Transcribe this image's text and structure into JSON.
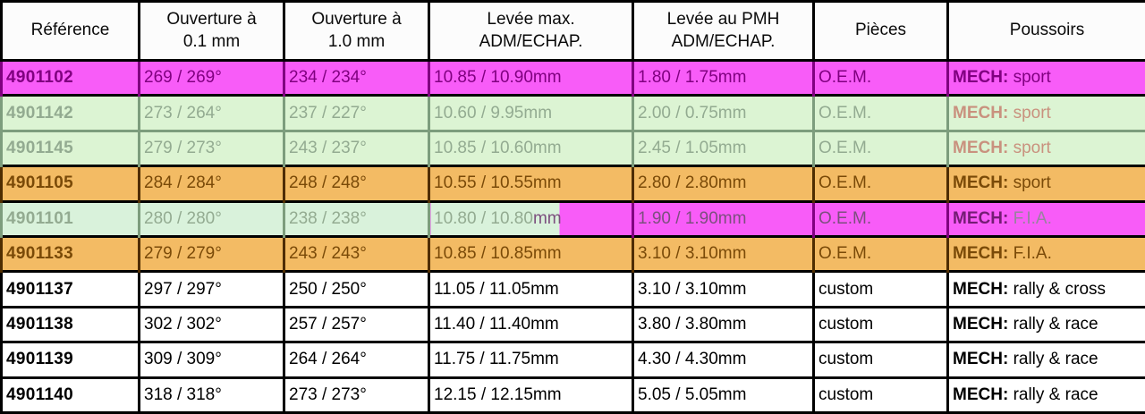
{
  "colors": {
    "magenta_bg": "#f85cf8",
    "purple_text": "#800080",
    "green_bg": "#dcf4d3",
    "green_bg_selected": "#d9f2db",
    "faded_text": "#93ab91",
    "faded_border": "#7d9d7d",
    "salmon_text": "#c9917e",
    "orange_bg": "#f3bb64",
    "brown_text": "#7a4a08",
    "brown_border": "#4f2d00",
    "selected_text": "#7c4f7e",
    "selected_text_light": "#97839d",
    "selected_mech": "#741c74",
    "header_bg": "#fcfcfc",
    "white_row_text": "#000000",
    "border_black": "#000000"
  },
  "table": {
    "columns": [
      {
        "id": "reference",
        "label_lines": [
          "Référence"
        ]
      },
      {
        "id": "ouverture_01",
        "label_lines": [
          "Ouverture à",
          "0.1 mm"
        ]
      },
      {
        "id": "ouverture_10",
        "label_lines": [
          "Ouverture à",
          "1.0 mm"
        ]
      },
      {
        "id": "levee_max",
        "label_lines": [
          "Levée max.",
          "ADM/ECHAP."
        ]
      },
      {
        "id": "levee_pmh",
        "label_lines": [
          "Levée au PMH",
          "ADM/ECHAP."
        ]
      },
      {
        "id": "pieces",
        "label_lines": [
          "Pièces"
        ]
      },
      {
        "id": "poussoirs",
        "label_lines": [
          "Poussoirs"
        ]
      }
    ],
    "rows": [
      {
        "style": "magenta",
        "reference": "4901102",
        "ouverture_01": "269 / 269°",
        "ouverture_10": "234 / 234°",
        "levee_max": "10.85 / 10.90mm",
        "levee_pmh": "1.80 / 1.75mm",
        "pieces": "O.E.M.",
        "poussoirs": {
          "label": "MECH:",
          "value": "sport"
        }
      },
      {
        "style": "faded",
        "reference": "4901142",
        "ouverture_01": "273 / 264°",
        "ouverture_10": "237 / 227°",
        "levee_max": "10.60 / 9.95mm",
        "levee_pmh": "2.00 / 0.75mm",
        "pieces": "O.E.M.",
        "poussoirs": {
          "label": "MECH:",
          "value": "sport"
        }
      },
      {
        "style": "faded",
        "reference": "4901145",
        "ouverture_01": "279 / 273°",
        "ouverture_10": "243 / 237°",
        "levee_max": "10.85 / 10.60mm",
        "levee_pmh": "2.45 / 1.05mm",
        "pieces": "O.E.M.",
        "poussoirs": {
          "label": "MECH:",
          "value": "sport"
        }
      },
      {
        "style": "orange",
        "reference": "4901105",
        "ouverture_01": "284 / 284°",
        "ouverture_10": "248 / 248°",
        "levee_max": "10.55 / 10.55mm",
        "levee_pmh": "2.80 / 2.80mm",
        "pieces": "O.E.M.",
        "poussoirs": {
          "label": "MECH:",
          "value": "sport"
        }
      },
      {
        "style": "selected",
        "reference": "4901101",
        "ouverture_01": "280 / 280°",
        "ouverture_10": "238 / 238°",
        "levee_max_split": {
          "plain": "10.80 / 10.80",
          "selected": "mm"
        },
        "levee_pmh": "1.90 / 1.90mm",
        "pieces": "O.E.M.",
        "poussoirs": {
          "label": "MECH:",
          "value": "F.I.A."
        }
      },
      {
        "style": "orange",
        "reference": "4901133",
        "ouverture_01": "279 / 279°",
        "ouverture_10": "243 / 243°",
        "levee_max": "10.85 / 10.85mm",
        "levee_pmh": "3.10 / 3.10mm",
        "pieces": "O.E.M.",
        "poussoirs": {
          "label": "MECH:",
          "value": "F.I.A."
        }
      },
      {
        "style": "white",
        "reference": "4901137",
        "ouverture_01": "297 / 297°",
        "ouverture_10": "250 / 250°",
        "levee_max": "11.05 / 11.05mm",
        "levee_pmh": "3.10 / 3.10mm",
        "pieces": "custom",
        "poussoirs": {
          "label": "MECH:",
          "value": "rally & cross"
        }
      },
      {
        "style": "white",
        "reference": "4901138",
        "ouverture_01": "302 / 302°",
        "ouverture_10": "257 / 257°",
        "levee_max": "11.40 / 11.40mm",
        "levee_pmh": "3.80 / 3.80mm",
        "pieces": "custom",
        "poussoirs": {
          "label": "MECH:",
          "value": "rally & race"
        }
      },
      {
        "style": "white",
        "reference": "4901139",
        "ouverture_01": "309 / 309°",
        "ouverture_10": "264 / 264°",
        "levee_max": "11.75 / 11.75mm",
        "levee_pmh": "4.30 / 4.30mm",
        "pieces": "custom",
        "poussoirs": {
          "label": "MECH:",
          "value": "rally & race"
        }
      },
      {
        "style": "white",
        "reference": "4901140",
        "ouverture_01": "318 / 318°",
        "ouverture_10": "273 / 273°",
        "levee_max": "12.15 / 12.15mm",
        "levee_pmh": "5.05 / 5.05mm",
        "pieces": "custom",
        "poussoirs": {
          "label": "MECH:",
          "value": "rally & race"
        }
      }
    ]
  }
}
